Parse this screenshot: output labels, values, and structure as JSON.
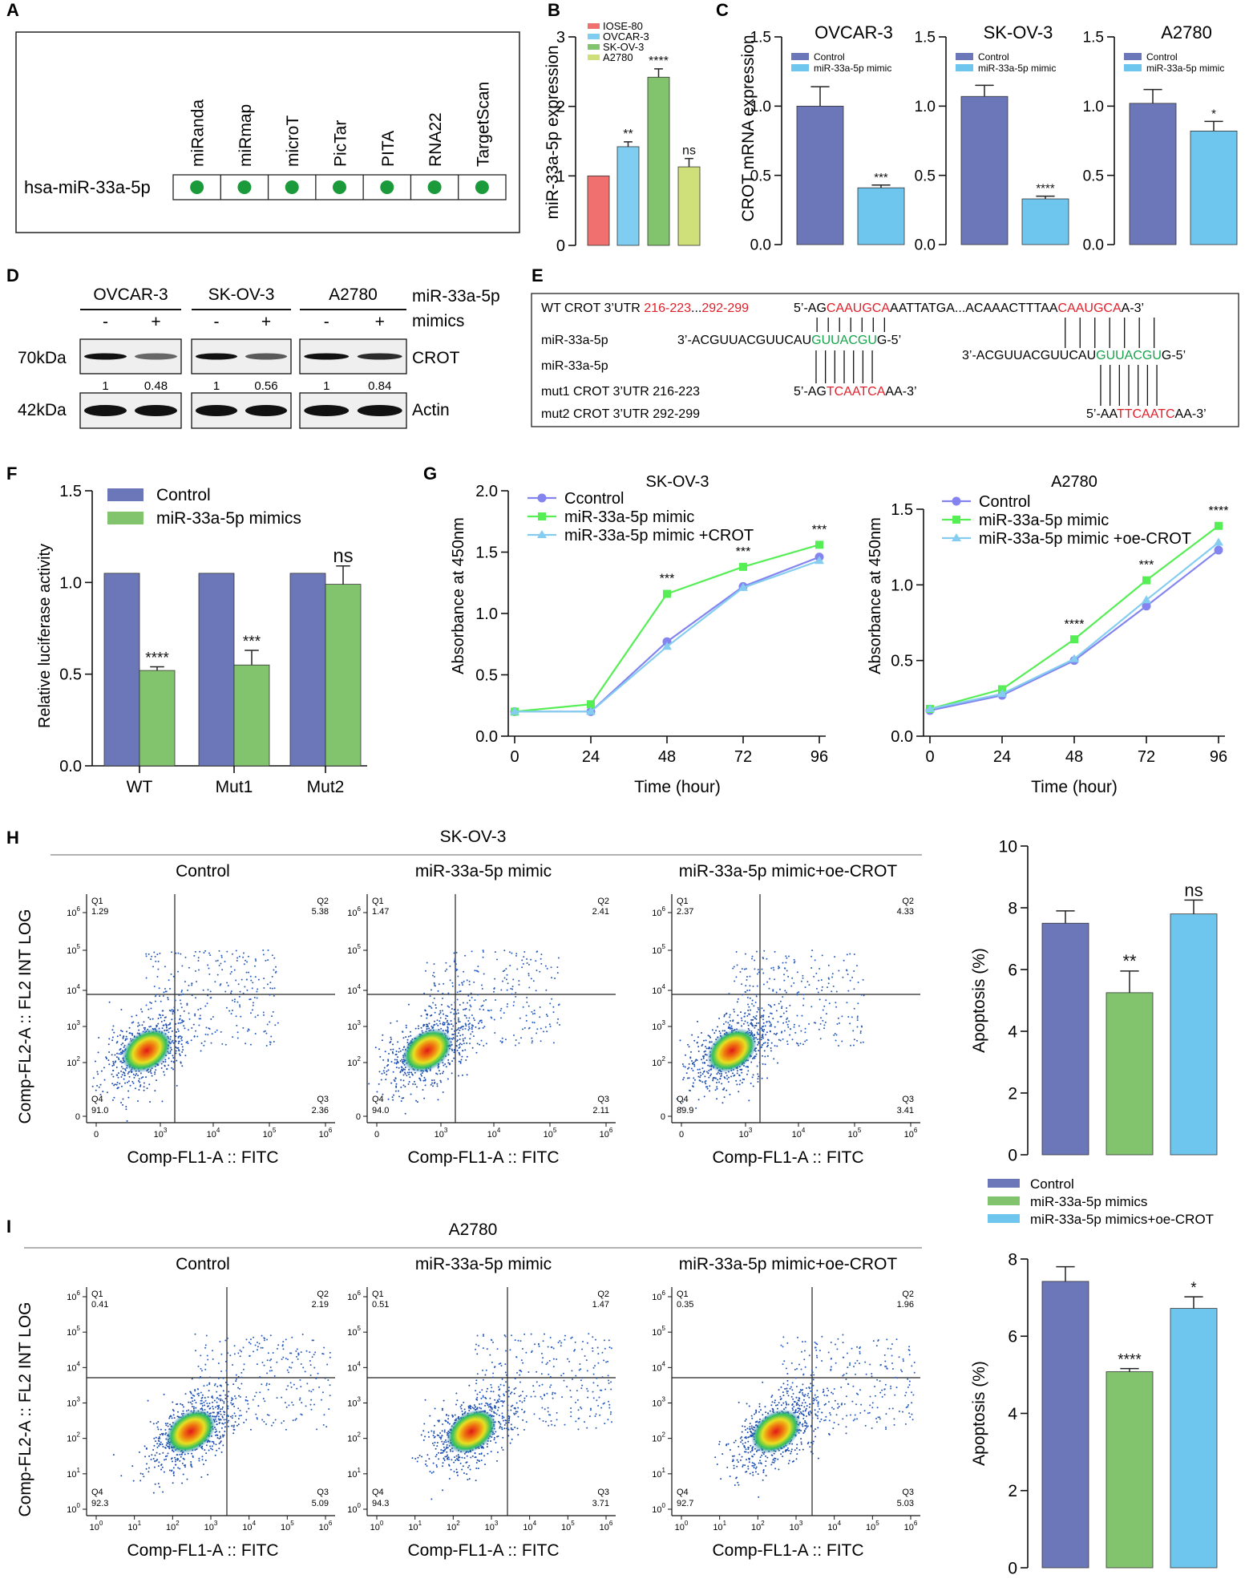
{
  "colors": {
    "control": "#6b77b8",
    "mimic": "#82c46d",
    "oe": "#6ec6ee",
    "ctrlLine": "#8484f0",
    "mimicLine": "#55ee55",
    "oeLine": "#85cdf0",
    "iose": "#f07070",
    "ovcar": "#7fcdf0",
    "skov": "#82c46d",
    "a2780": "#cfe07a",
    "red": "#e0202a",
    "green": "#16a34a",
    "dot": "#1a9a3a"
  },
  "panelA": {
    "letter": "A",
    "row_label": "hsa-miR-33a-5p",
    "databases": [
      "miRanda",
      "miRmap",
      "microT",
      "PicTar",
      "PITA",
      "RNA22",
      "TargetScan"
    ]
  },
  "panelB": {
    "letter": "B",
    "ylabel": "miR-33a-5p expression",
    "yticks": [
      "0",
      "1",
      "2",
      "3"
    ],
    "legend": [
      "IOSE-80",
      "OVCAR-3",
      "SK-OV-3",
      "A2780"
    ]
  },
  "panelC": {
    "letter": "C",
    "ylabel": "CROT mRNA expression",
    "yticks": [
      "0.0",
      "0.5",
      "1.0",
      "1.5"
    ],
    "legend": [
      "Control",
      "miR-33a-5p mimic"
    ],
    "titles": [
      "OVCAR-3",
      "SK-OV-3",
      "A2780"
    ]
  },
  "panelD": {
    "letter": "D",
    "cell_lines": [
      "OVCAR-3",
      "SK-OV-3",
      "A2780"
    ],
    "minus": "-",
    "plus": "+",
    "treat_label1": "miR-33a-5p",
    "treat_label2": "mimics",
    "kda70": "70kDa",
    "kda42": "42kDa",
    "protein1": "CROT",
    "protein2": "Actin",
    "quant": [
      "1",
      "0.48",
      "1",
      "0.56",
      "1",
      "0.84"
    ]
  },
  "panelE": {
    "letter": "E",
    "wt_prefix": "WT CROT 3’UTR ",
    "wt_pos1": "216-223",
    "wt_dots": "...",
    "wt_pos2": "292-299",
    "wt_s1": "5’-AG",
    "wt_s2": "CAAUGCA",
    "wt_s3": "AATTATGA...ACAAACTTTAA",
    "wt_s4": "CAAUGCA",
    "wt_s5": "A-3’",
    "mir_label": "miR-33a-5p",
    "mir_s1": "3’-ACGUUACGUUCAU",
    "mir_s2": "GUUACGU",
    "mir_s3": "G-5’",
    "mut1_label": "mut1 CROT 3’UTR 216-223",
    "mut1_s1": "5’-AG",
    "mut1_s2": "TCAATCA",
    "mut1_s3": "AA-3’",
    "mut2_label": "mut2 CROT 3’UTR 292-299",
    "mut2_s1": "5’-AA",
    "mut2_s2": "TTCAATC",
    "mut2_s3": "AA-3’"
  },
  "panelF": {
    "letter": "F",
    "ylabel": "Relative luciferase activity",
    "yticks": [
      "0.0",
      "0.5",
      "1.0",
      "1.5"
    ],
    "legend": [
      "Control",
      "miR-33a-5p mimics"
    ],
    "groups": [
      "WT",
      "Mut1",
      "Mut2"
    ]
  },
  "panelG": {
    "letter": "G",
    "ylabel": "Absorbance at 450nm",
    "xlabel": "Time (hour)",
    "xticks": [
      "0",
      "24",
      "48",
      "72",
      "96"
    ],
    "left": {
      "title": "SK-OV-3",
      "yticks": [
        "0.0",
        "0.5",
        "1.0",
        "1.5",
        "2.0"
      ],
      "legend": [
        "Ccontrol",
        "miR-33a-5p mimic",
        "miR-33a-5p mimic +CROT"
      ]
    },
    "right": {
      "title": "A2780",
      "yticks": [
        "0.0",
        "0.5",
        "1.0",
        "1.5"
      ],
      "legend": [
        "Control",
        "miR-33a-5p mimic",
        "miR-33a-5p mimic +oe-CROT"
      ]
    }
  },
  "panelH": {
    "letter": "H",
    "cell": "SK-OV-3",
    "titles": [
      "Control",
      "miR-33a-5p mimic",
      "miR-33a-5p mimic+oe-CROT"
    ],
    "yticks": [
      "0",
      "2",
      "4",
      "6",
      "8",
      "10"
    ]
  },
  "panelI": {
    "letter": "I",
    "cell": "A2780",
    "titles": [
      "Control",
      "miR-33a-5p mimic",
      "miR-33a-5p mimic+oe-CROT"
    ],
    "yticks": [
      "0",
      "2",
      "4",
      "6",
      "8"
    ]
  },
  "flow": {
    "ylabel": "Comp-FL2-A :: FL2 INT LOG",
    "xlabel": "Comp-FL1-A :: FITC",
    "q_names": [
      "Q1",
      "Q2",
      "Q3",
      "Q4"
    ],
    "h_quads": [
      [
        "1.29",
        "5.38",
        "2.36",
        "91.0"
      ],
      [
        "1.47",
        "2.41",
        "2.11",
        "94.0"
      ],
      [
        "2.37",
        "4.33",
        "3.41",
        "89.9"
      ]
    ],
    "i_quads": [
      [
        "0.41",
        "2.19",
        "5.09",
        "92.3"
      ],
      [
        "0.51",
        "1.47",
        "3.71",
        "94.3"
      ],
      [
        "0.35",
        "1.96",
        "5.03",
        "92.7"
      ]
    ]
  },
  "apoptosis": {
    "ylabel": "Apoptosis (%)",
    "legend": [
      "Control",
      "miR-33a-5p mimics",
      "miR-33a-5p mimics+oe-CROT"
    ]
  },
  "chart_data": [
    {
      "id": "B",
      "type": "bar",
      "title": "",
      "ylabel": "miR-33a-5p expression",
      "ylim": [
        0,
        3
      ],
      "categories": [
        "IOSE-80",
        "OVCAR-3",
        "SK-OV-3",
        "A2780"
      ],
      "values": [
        1.0,
        1.42,
        2.42,
        1.13
      ],
      "errors": [
        0,
        0.07,
        0.12,
        0.12
      ],
      "annotations": [
        "",
        "**",
        "****",
        "ns"
      ]
    },
    {
      "id": "C1",
      "type": "bar",
      "title": "OVCAR-3",
      "ylabel": "CROT mRNA expression",
      "ylim": [
        0,
        1.5
      ],
      "categories": [
        "Control",
        "miR-33a-5p mimic"
      ],
      "values": [
        1.0,
        0.41
      ],
      "errors": [
        0.14,
        0.02
      ],
      "annotations": [
        "",
        "***"
      ]
    },
    {
      "id": "C2",
      "type": "bar",
      "title": "SK-OV-3",
      "ylim": [
        0,
        1.5
      ],
      "categories": [
        "Control",
        "miR-33a-5p mimic"
      ],
      "values": [
        1.07,
        0.33
      ],
      "errors": [
        0.08,
        0.02
      ],
      "annotations": [
        "",
        "****"
      ]
    },
    {
      "id": "C3",
      "type": "bar",
      "title": "A2780",
      "ylim": [
        0,
        1.5
      ],
      "categories": [
        "Control",
        "miR-33a-5p mimic"
      ],
      "values": [
        1.02,
        0.82
      ],
      "errors": [
        0.1,
        0.07
      ],
      "annotations": [
        "",
        "*"
      ]
    },
    {
      "id": "F",
      "type": "bar",
      "ylabel": "Relative luciferase activity",
      "ylim": [
        0,
        1.5
      ],
      "categories": [
        "WT",
        "Mut1",
        "Mut2"
      ],
      "series": [
        {
          "name": "Control",
          "values": [
            1.05,
            1.05,
            1.05
          ],
          "errors": [
            0,
            0,
            0
          ]
        },
        {
          "name": "miR-33a-5p mimics",
          "values": [
            0.52,
            0.55,
            0.99
          ],
          "errors": [
            0.02,
            0.08,
            0.1
          ]
        }
      ],
      "annotations": [
        "****",
        "***",
        "ns"
      ]
    },
    {
      "id": "G1",
      "type": "line",
      "title": "SK-OV-3",
      "xlabel": "Time (hour)",
      "ylabel": "Absorbance at 450nm",
      "ylim": [
        0,
        2.0
      ],
      "x": [
        0,
        24,
        48,
        72,
        96
      ],
      "series": [
        {
          "name": "Ccontrol",
          "values": [
            0.2,
            0.2,
            0.77,
            1.22,
            1.46
          ]
        },
        {
          "name": "miR-33a-5p mimic",
          "values": [
            0.2,
            0.26,
            1.16,
            1.38,
            1.56
          ]
        },
        {
          "name": "miR-33a-5p mimic +CROT",
          "values": [
            0.2,
            0.2,
            0.73,
            1.21,
            1.43
          ]
        }
      ],
      "annotations": [
        {
          "x": 48,
          "text": "***"
        },
        {
          "x": 72,
          "text": "***"
        },
        {
          "x": 96,
          "text": "***"
        }
      ]
    },
    {
      "id": "G2",
      "type": "line",
      "title": "A2780",
      "xlabel": "Time (hour)",
      "ylabel": "Absorbance at 450nm",
      "ylim": [
        0,
        1.5
      ],
      "x": [
        0,
        24,
        48,
        72,
        96
      ],
      "series": [
        {
          "name": "Control",
          "values": [
            0.17,
            0.27,
            0.5,
            0.86,
            1.23
          ]
        },
        {
          "name": "miR-33a-5p mimic",
          "values": [
            0.18,
            0.31,
            0.64,
            1.03,
            1.39
          ]
        },
        {
          "name": "miR-33a-5p mimic +oe-CROT",
          "values": [
            0.18,
            0.28,
            0.51,
            0.9,
            1.28
          ]
        }
      ],
      "annotations": [
        {
          "x": 48,
          "text": "****"
        },
        {
          "x": 72,
          "text": "***"
        },
        {
          "x": 96,
          "text": "****"
        }
      ]
    },
    {
      "id": "H",
      "type": "bar",
      "title": "SK-OV-3",
      "ylabel": "Apoptosis (%)",
      "ylim": [
        0,
        10
      ],
      "categories": [
        "Control",
        "miR-33a-5p mimics",
        "miR-33a-5p mimics+oe-CROT"
      ],
      "values": [
        7.5,
        5.25,
        7.8
      ],
      "errors": [
        0.4,
        0.7,
        0.45
      ],
      "annotations": [
        "",
        "**",
        "ns"
      ]
    },
    {
      "id": "I",
      "type": "bar",
      "title": "A2780",
      "ylabel": "Apoptosis (%)",
      "ylim": [
        0,
        8
      ],
      "categories": [
        "Control",
        "miR-33a-5p mimics",
        "miR-33a-5p mimics+oe-CROT"
      ],
      "values": [
        7.42,
        5.08,
        6.72
      ],
      "errors": [
        0.38,
        0.08,
        0.3
      ],
      "annotations": [
        "",
        "****",
        "*"
      ]
    }
  ]
}
